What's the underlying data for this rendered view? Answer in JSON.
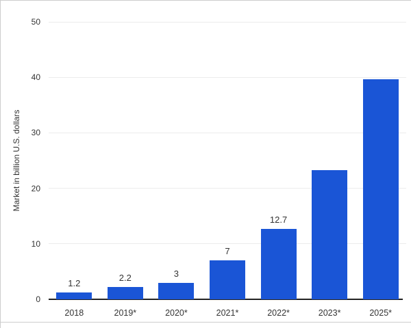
{
  "chart_data": {
    "type": "bar",
    "title": "",
    "xlabel": "",
    "ylabel": "Market in billion U.S. dollars",
    "categories": [
      "2018",
      "2019*",
      "2020*",
      "2021*",
      "2022*",
      "2023*",
      "2025*"
    ],
    "values": [
      1.2,
      2.2,
      3,
      7,
      12.7,
      23.3,
      39.7
    ],
    "value_labels": [
      "1.2",
      "2.2",
      "3",
      "7",
      "12.7",
      "",
      ""
    ],
    "ylim": [
      0,
      50
    ],
    "yticks": [
      0,
      10,
      20,
      30,
      40,
      50
    ],
    "grid": true,
    "legend": false,
    "colors": {
      "bar": "#1a55d6",
      "gridline": "#ececec",
      "axis": "#222222",
      "text": "#333333",
      "frame_border": "#cccccc"
    }
  }
}
